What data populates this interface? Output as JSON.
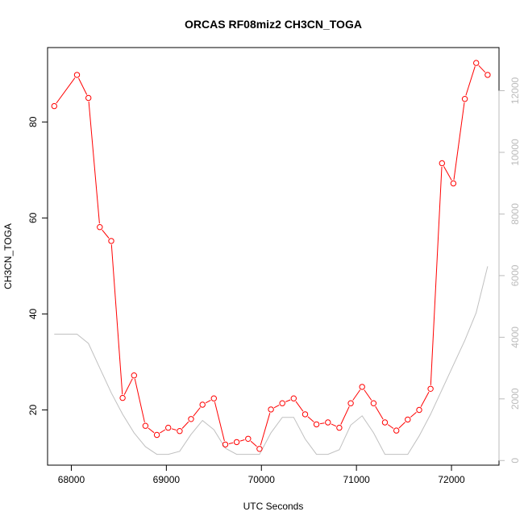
{
  "chart_data": {
    "type": "line",
    "title": "ORCAS RF08miz2 CH3CN_TOGA",
    "xlabel": "UTC Seconds",
    "ylabel": "CH3CN_TOGA",
    "xlim": [
      67750,
      72500
    ],
    "ylim": [
      8.5,
      95.5
    ],
    "y2lim": [
      -150,
      13400
    ],
    "xticks": [
      "68000",
      "69000",
      "70000",
      "71000",
      "72000"
    ],
    "yticks": [
      "20",
      "40",
      "60",
      "80"
    ],
    "y2ticks": [
      "0",
      "2000",
      "4000",
      "6000",
      "8000",
      "10000",
      "12000"
    ],
    "grid": false,
    "series": [
      {
        "role": "primary",
        "color": "#ff0000",
        "marker": "open-circle",
        "x": [
          67820,
          68060,
          68180,
          68300,
          68420,
          68540,
          68660,
          68780,
          68900,
          69020,
          69140,
          69260,
          69380,
          69500,
          69620,
          69740,
          69860,
          69980,
          70100,
          70220,
          70340,
          70460,
          70580,
          70700,
          70820,
          70940,
          71060,
          71180,
          71300,
          71420,
          71540,
          71660,
          71780,
          71900,
          72020,
          72140,
          72260,
          72380
        ],
        "values": [
          83.3,
          89.8,
          85.0,
          58.1,
          55.2,
          22.5,
          27.2,
          16.7,
          14.8,
          16.3,
          15.6,
          18.1,
          21.1,
          22.4,
          12.8,
          13.3,
          14.0,
          11.9,
          20.1,
          21.4,
          22.4,
          19.1,
          17.0,
          17.4,
          16.3,
          21.4,
          24.8,
          21.4,
          17.4,
          15.7,
          18.0,
          20.0,
          24.4,
          71.4,
          67.2,
          84.8,
          92.3,
          89.8
        ]
      },
      {
        "role": "secondary",
        "color": "#c0c0c0",
        "marker": "none",
        "x": [
          67820,
          68060,
          68180,
          68300,
          68420,
          68540,
          68660,
          68780,
          68900,
          69020,
          69140,
          69260,
          69380,
          69500,
          69620,
          69740,
          69860,
          69980,
          70100,
          70220,
          70340,
          70460,
          70580,
          70700,
          70820,
          70940,
          71060,
          71180,
          71300,
          71420,
          71540,
          71660,
          71780,
          71900,
          72020,
          72140,
          72260,
          72380
        ],
        "values": [
          4100,
          4100,
          3800,
          3000,
          2200,
          1500,
          900,
          450,
          200,
          200,
          300,
          850,
          1300,
          1000,
          400,
          200,
          200,
          200,
          900,
          1400,
          1400,
          700,
          200,
          200,
          350,
          1150,
          1450,
          900,
          200,
          200,
          200,
          800,
          1500,
          2300,
          3100,
          3900,
          4800,
          6300
        ]
      }
    ]
  }
}
